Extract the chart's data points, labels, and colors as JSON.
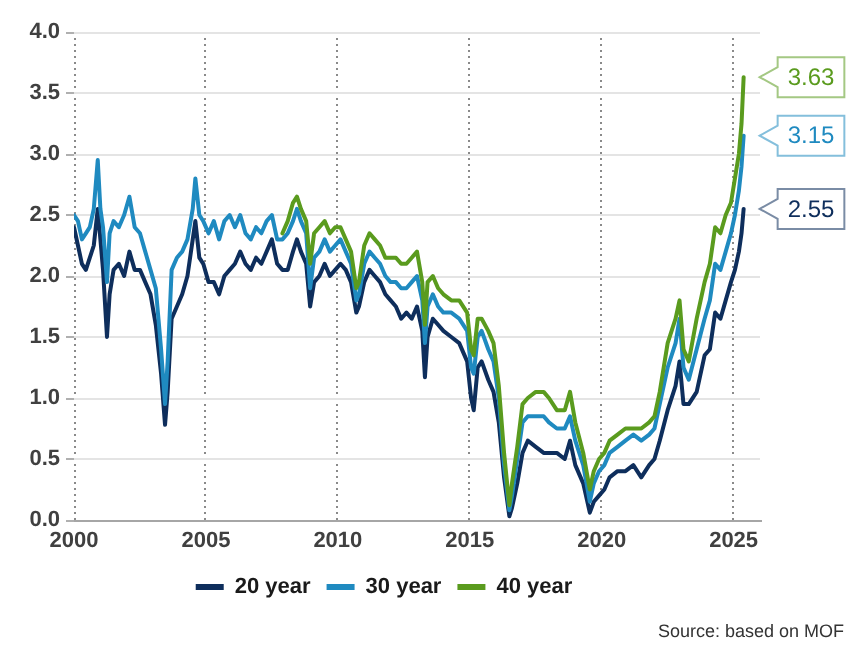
{
  "chart_data": {
    "type": "line",
    "x": [
      2000,
      2000.15,
      2000.3,
      2000.45,
      2000.6,
      2000.75,
      2000.9,
      2001,
      2001.1,
      2001.25,
      2001.35,
      2001.5,
      2001.7,
      2001.9,
      2002.1,
      2002.3,
      2002.5,
      2002.7,
      2002.9,
      2003.1,
      2003.3,
      2003.45,
      2003.55,
      2003.7,
      2003.9,
      2004.1,
      2004.3,
      2004.5,
      2004.6,
      2004.75,
      2004.9,
      2005.1,
      2005.3,
      2005.5,
      2005.7,
      2005.9,
      2006.1,
      2006.3,
      2006.5,
      2006.7,
      2006.9,
      2007.1,
      2007.3,
      2007.5,
      2007.7,
      2007.9,
      2008.1,
      2008.3,
      2008.45,
      2008.6,
      2008.8,
      2008.95,
      2009.1,
      2009.3,
      2009.5,
      2009.7,
      2009.9,
      2010.1,
      2010.3,
      2010.5,
      2010.7,
      2010.8,
      2011,
      2011.2,
      2011.4,
      2011.6,
      2011.8,
      2012,
      2012.2,
      2012.4,
      2012.6,
      2012.8,
      2013,
      2013.2,
      2013.3,
      2013.4,
      2013.6,
      2013.8,
      2014,
      2014.3,
      2014.6,
      2014.9,
      2015.05,
      2015.15,
      2015.3,
      2015.45,
      2015.7,
      2015.9,
      2016.1,
      2016.3,
      2016.5,
      2016.6,
      2016.8,
      2017,
      2017.2,
      2017.5,
      2017.8,
      2018,
      2018.3,
      2018.6,
      2018.8,
      2019,
      2019.3,
      2019.55,
      2019.7,
      2019.9,
      2020.1,
      2020.3,
      2020.6,
      2020.9,
      2021.2,
      2021.5,
      2021.8,
      2022,
      2022.2,
      2022.5,
      2022.8,
      2022.95,
      2023.1,
      2023.3,
      2023.6,
      2023.9,
      2024.1,
      2024.3,
      2024.5,
      2024.7,
      2024.9,
      2025.05,
      2025.2,
      2025.3,
      2025.38
    ],
    "series": [
      {
        "name": "20 year",
        "color": "#0e2e5c",
        "values": [
          2.4,
          2.25,
          2.1,
          2.05,
          2.15,
          2.25,
          2.55,
          2.3,
          2.05,
          1.5,
          1.85,
          2.05,
          2.1,
          2.0,
          2.2,
          2.05,
          2.05,
          1.95,
          1.85,
          1.6,
          1.2,
          0.78,
          1.05,
          1.65,
          1.75,
          1.85,
          2.0,
          2.3,
          2.45,
          2.15,
          2.1,
          1.95,
          1.95,
          1.85,
          2.0,
          2.05,
          2.1,
          2.2,
          2.1,
          2.05,
          2.15,
          2.1,
          2.2,
          2.3,
          2.1,
          2.05,
          2.05,
          2.2,
          2.3,
          2.2,
          2.1,
          1.75,
          1.95,
          2.0,
          2.1,
          2.0,
          2.05,
          2.1,
          2.05,
          1.95,
          1.7,
          1.75,
          1.95,
          2.05,
          2.0,
          1.95,
          1.85,
          1.8,
          1.75,
          1.65,
          1.7,
          1.65,
          1.75,
          1.55,
          1.17,
          1.5,
          1.65,
          1.6,
          1.55,
          1.5,
          1.45,
          1.3,
          1.0,
          0.9,
          1.25,
          1.3,
          1.15,
          1.05,
          0.8,
          0.35,
          0.03,
          0.1,
          0.3,
          0.55,
          0.65,
          0.6,
          0.55,
          0.55,
          0.55,
          0.5,
          0.65,
          0.45,
          0.3,
          0.06,
          0.15,
          0.2,
          0.25,
          0.35,
          0.4,
          0.4,
          0.45,
          0.35,
          0.45,
          0.5,
          0.65,
          0.9,
          1.1,
          1.3,
          0.95,
          0.95,
          1.05,
          1.35,
          1.4,
          1.7,
          1.65,
          1.8,
          1.95,
          2.05,
          2.2,
          2.35,
          2.55
        ],
        "value_labels": [
          null,
          null,
          null,
          null,
          null,
          null,
          null,
          null,
          null,
          null,
          null,
          null,
          null,
          null,
          null,
          null,
          null,
          null,
          null,
          null,
          null,
          null,
          null,
          null,
          null,
          null,
          null,
          null,
          null,
          null,
          null,
          null,
          null,
          null,
          null,
          null,
          null,
          null,
          null,
          null,
          null,
          null,
          null,
          null,
          null,
          null,
          null,
          null,
          null,
          null,
          null,
          null,
          null,
          null,
          null,
          null,
          null,
          null,
          null,
          null,
          null,
          null,
          null,
          null,
          null,
          null,
          null,
          null,
          null,
          null,
          null,
          null,
          null,
          null,
          null,
          null,
          null,
          null,
          null,
          null,
          null,
          null,
          null,
          null,
          null,
          null,
          null,
          null,
          null,
          null,
          null,
          null,
          null,
          null,
          null,
          null,
          null,
          null,
          null,
          null,
          null,
          null,
          null,
          null,
          null,
          null,
          null,
          null,
          null,
          null,
          null,
          null,
          null,
          null,
          null,
          null,
          null,
          null,
          null,
          null,
          null,
          null,
          null,
          null,
          null,
          null,
          null,
          null,
          null,
          null,
          "2.55"
        ]
      },
      {
        "name": "30 year",
        "color": "#1f8ac0",
        "values": [
          2.5,
          2.45,
          2.3,
          2.35,
          2.4,
          2.55,
          2.95,
          2.55,
          2.4,
          1.95,
          2.35,
          2.45,
          2.4,
          2.5,
          2.65,
          2.4,
          2.35,
          2.2,
          2.05,
          1.9,
          1.4,
          0.95,
          1.3,
          2.05,
          2.15,
          2.2,
          2.3,
          2.55,
          2.8,
          2.5,
          2.45,
          2.35,
          2.45,
          2.3,
          2.45,
          2.5,
          2.4,
          2.5,
          2.35,
          2.3,
          2.4,
          2.35,
          2.45,
          2.5,
          2.3,
          2.3,
          2.35,
          2.45,
          2.55,
          2.45,
          2.35,
          1.9,
          2.15,
          2.2,
          2.3,
          2.2,
          2.25,
          2.3,
          2.2,
          2.1,
          1.8,
          1.85,
          2.1,
          2.2,
          2.15,
          2.1,
          2.0,
          1.95,
          1.95,
          1.9,
          1.9,
          1.95,
          2.0,
          1.8,
          1.45,
          1.75,
          1.85,
          1.75,
          1.7,
          1.7,
          1.65,
          1.55,
          1.25,
          1.2,
          1.5,
          1.55,
          1.4,
          1.3,
          1.0,
          0.45,
          0.08,
          0.2,
          0.5,
          0.8,
          0.85,
          0.85,
          0.85,
          0.8,
          0.75,
          0.75,
          0.85,
          0.65,
          0.45,
          0.15,
          0.3,
          0.4,
          0.45,
          0.55,
          0.6,
          0.65,
          0.7,
          0.65,
          0.7,
          0.75,
          0.95,
          1.25,
          1.45,
          1.65,
          1.25,
          1.15,
          1.4,
          1.65,
          1.8,
          2.1,
          2.05,
          2.2,
          2.35,
          2.5,
          2.7,
          2.9,
          3.15
        ],
        "value_labels": [
          null,
          null,
          null,
          null,
          null,
          null,
          null,
          null,
          null,
          null,
          null,
          null,
          null,
          null,
          null,
          null,
          null,
          null,
          null,
          null,
          null,
          null,
          null,
          null,
          null,
          null,
          null,
          null,
          null,
          null,
          null,
          null,
          null,
          null,
          null,
          null,
          null,
          null,
          null,
          null,
          null,
          null,
          null,
          null,
          null,
          null,
          null,
          null,
          null,
          null,
          null,
          null,
          null,
          null,
          null,
          null,
          null,
          null,
          null,
          null,
          null,
          null,
          null,
          null,
          null,
          null,
          null,
          null,
          null,
          null,
          null,
          null,
          null,
          null,
          null,
          null,
          null,
          null,
          null,
          null,
          null,
          null,
          null,
          null,
          null,
          null,
          null,
          null,
          null,
          null,
          null,
          null,
          null,
          null,
          null,
          null,
          null,
          null,
          null,
          null,
          null,
          null,
          null,
          null,
          null,
          null,
          null,
          null,
          null,
          null,
          null,
          null,
          null,
          null,
          null,
          null,
          null,
          null,
          null,
          null,
          null,
          null,
          null,
          null,
          null,
          null,
          null,
          null,
          null,
          null,
          "3.15"
        ]
      },
      {
        "name": "40 year",
        "color": "#5a9b1e",
        "x": [
          2007.9,
          2008.1,
          2008.3,
          2008.45,
          2008.6,
          2008.8,
          2008.95,
          2009.1,
          2009.3,
          2009.5,
          2009.7,
          2009.9,
          2010.1,
          2010.3,
          2010.5,
          2010.7,
          2010.8,
          2011,
          2011.2,
          2011.4,
          2011.6,
          2011.8,
          2012,
          2012.2,
          2012.4,
          2012.6,
          2012.8,
          2013,
          2013.2,
          2013.3,
          2013.4,
          2013.6,
          2013.8,
          2014,
          2014.3,
          2014.6,
          2014.9,
          2015.05,
          2015.15,
          2015.3,
          2015.45,
          2015.7,
          2015.9,
          2016.1,
          2016.3,
          2016.5,
          2016.6,
          2016.8,
          2017,
          2017.2,
          2017.5,
          2017.8,
          2018,
          2018.3,
          2018.6,
          2018.8,
          2019,
          2019.3,
          2019.55,
          2019.7,
          2019.9,
          2020.1,
          2020.3,
          2020.6,
          2020.9,
          2021.2,
          2021.5,
          2021.8,
          2022,
          2022.2,
          2022.5,
          2022.8,
          2022.95,
          2023.1,
          2023.3,
          2023.6,
          2023.9,
          2024.1,
          2024.3,
          2024.5,
          2024.7,
          2024.9,
          2025.05,
          2025.2,
          2025.3,
          2025.38
        ],
        "values": [
          2.35,
          2.45,
          2.6,
          2.65,
          2.55,
          2.45,
          2.1,
          2.35,
          2.4,
          2.45,
          2.35,
          2.4,
          2.4,
          2.3,
          2.2,
          1.9,
          1.95,
          2.25,
          2.35,
          2.3,
          2.25,
          2.15,
          2.15,
          2.15,
          2.1,
          2.1,
          2.15,
          2.2,
          1.95,
          1.6,
          1.95,
          2.0,
          1.9,
          1.85,
          1.8,
          1.8,
          1.7,
          1.4,
          1.35,
          1.65,
          1.65,
          1.55,
          1.45,
          1.1,
          0.55,
          0.12,
          0.3,
          0.6,
          0.95,
          1.0,
          1.05,
          1.05,
          1.0,
          0.9,
          0.9,
          1.05,
          0.8,
          0.55,
          0.25,
          0.4,
          0.5,
          0.55,
          0.65,
          0.7,
          0.75,
          0.75,
          0.75,
          0.8,
          0.85,
          1.05,
          1.45,
          1.65,
          1.8,
          1.4,
          1.3,
          1.65,
          1.95,
          2.1,
          2.4,
          2.35,
          2.5,
          2.6,
          2.8,
          3.0,
          3.25,
          3.63
        ],
        "value_labels": [
          null,
          null,
          null,
          null,
          null,
          null,
          null,
          null,
          null,
          null,
          null,
          null,
          null,
          null,
          null,
          null,
          null,
          null,
          null,
          null,
          null,
          null,
          null,
          null,
          null,
          null,
          null,
          null,
          null,
          null,
          null,
          null,
          null,
          null,
          null,
          null,
          null,
          null,
          null,
          null,
          null,
          null,
          null,
          null,
          null,
          null,
          null,
          null,
          null,
          null,
          null,
          null,
          null,
          null,
          null,
          null,
          null,
          null,
          null,
          null,
          null,
          null,
          null,
          null,
          null,
          null,
          null,
          null,
          null,
          null,
          null,
          null,
          null,
          null,
          null,
          null,
          null,
          null,
          null,
          null,
          null,
          null,
          null,
          null,
          null,
          "3.63"
        ]
      }
    ],
    "xlim": [
      2000,
      2026
    ],
    "xticks": [
      2000,
      2005,
      2010,
      2015,
      2020,
      2025
    ],
    "ylim": [
      0,
      4
    ],
    "yticks": [
      {
        "value": 0,
        "label": "0.0"
      },
      0.5,
      {
        "value": 1,
        "label": "1.0"
      },
      1.5,
      {
        "value": 2,
        "label": "2.0"
      },
      2.5,
      {
        "value": 3,
        "label": "3.0"
      },
      3.5,
      {
        "value": 4,
        "label": "4.0"
      }
    ],
    "grid": true,
    "legend": "bottom",
    "annotations": [
      "Source: based on MOF"
    ]
  }
}
